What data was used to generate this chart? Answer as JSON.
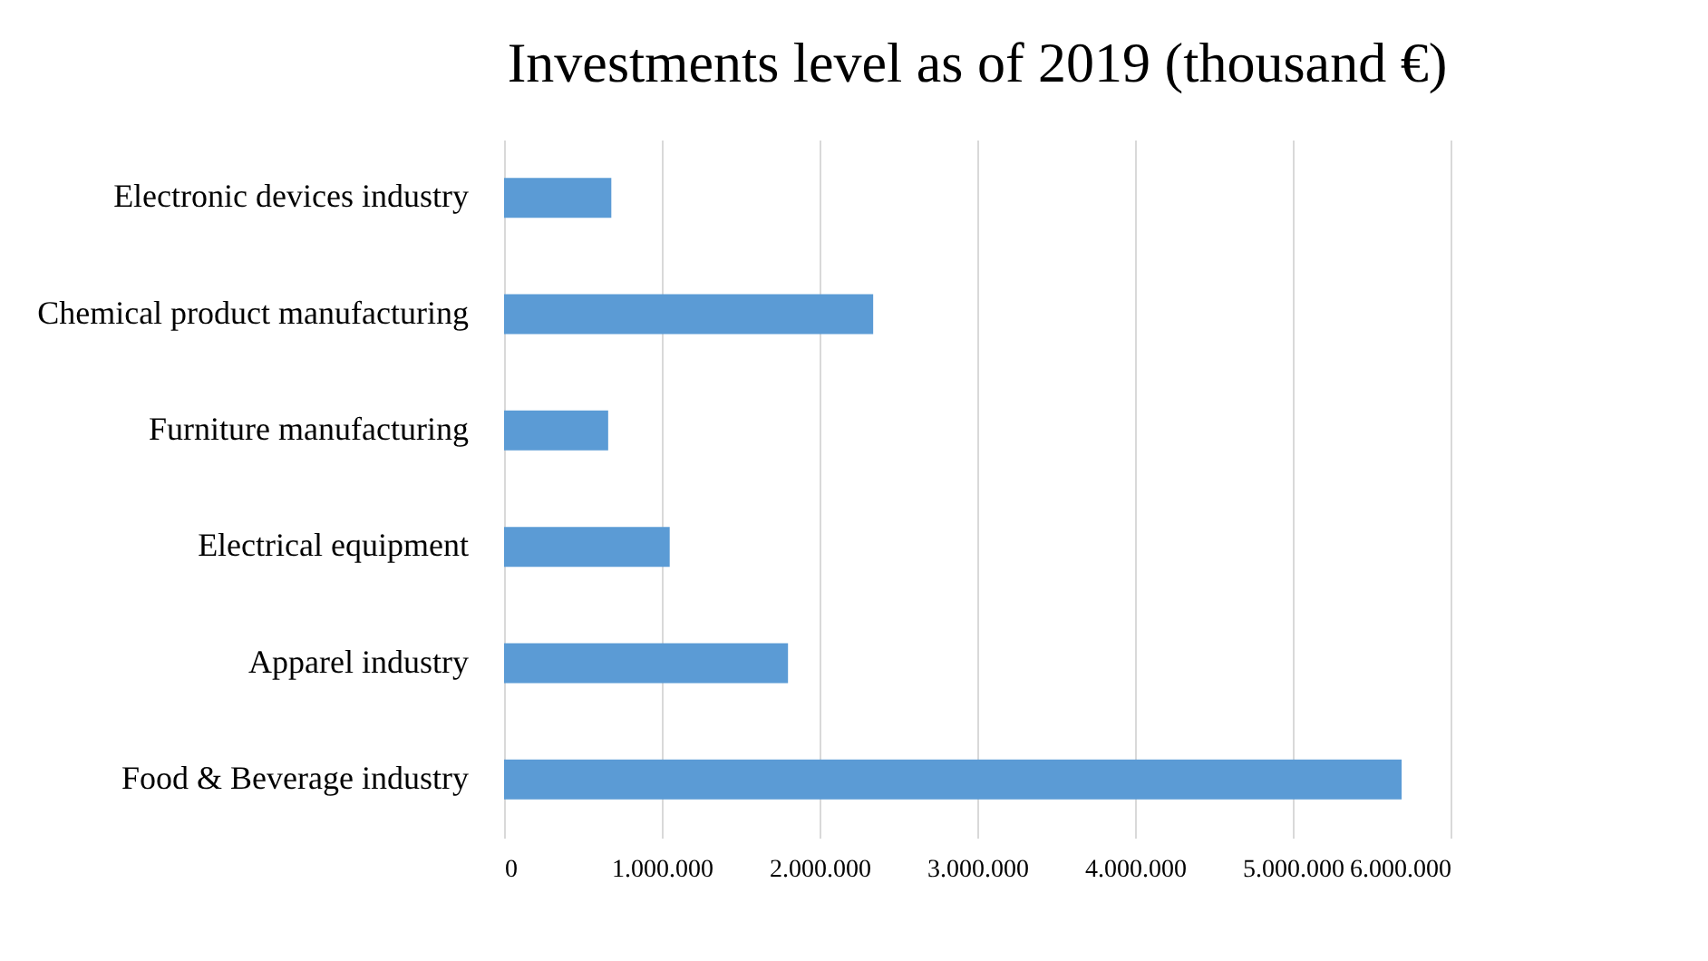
{
  "chart_data": {
    "type": "bar",
    "orientation": "horizontal",
    "title": "Investments level as of 2019 (thousand €)",
    "categories": [
      "Electronic devices industry",
      "Chemical product manufacturing",
      "Furniture manufacturing",
      "Electrical equipment",
      "Apparel industry",
      "Food & Beverage industry"
    ],
    "values": [
      680000,
      2340000,
      660000,
      1050000,
      1800000,
      5690000
    ],
    "color": "#5b9bd5",
    "xlim": [
      0,
      6000000
    ],
    "xticks": [
      0,
      {
        "value": 1000000,
        "label": "1.000.000"
      },
      {
        "value": 2000000,
        "label": "2.000.000"
      },
      {
        "value": 3000000,
        "label": "3.000.000"
      },
      {
        "value": 4000000,
        "label": "4.000.000"
      },
      {
        "value": 5000000,
        "label": "5.000.000"
      },
      {
        "value": 6000000,
        "label": "6.000.000"
      }
    ],
    "grid": "x"
  }
}
